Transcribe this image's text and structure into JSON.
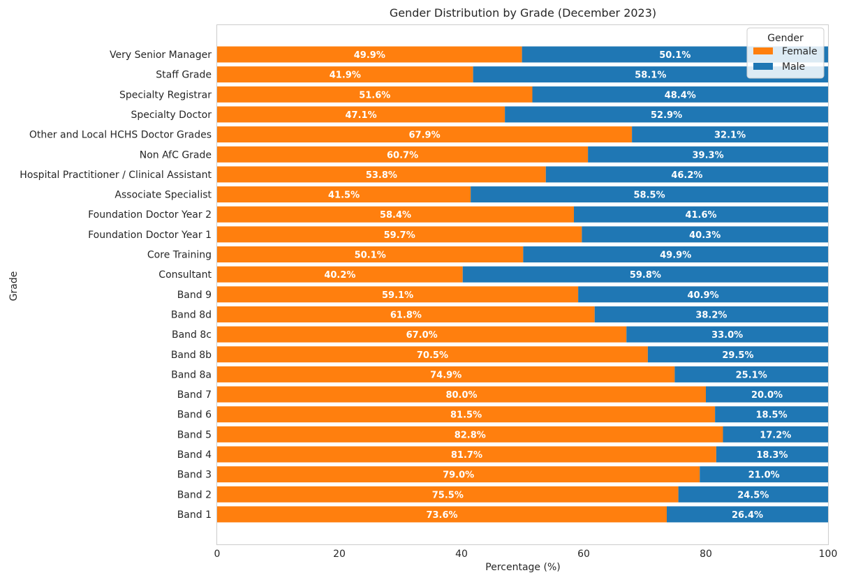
{
  "chart_data": {
    "type": "bar",
    "orientation": "horizontal",
    "stacked": true,
    "title": "Gender Distribution by Grade (December 2023)",
    "xlabel": "Percentage (%)",
    "ylabel": "Grade",
    "xlim": [
      0,
      100
    ],
    "xticks": [
      "0",
      "20",
      "40",
      "60",
      "80",
      "100"
    ],
    "grid": false,
    "legend": {
      "title": "Gender",
      "placement": "top-right",
      "entries": [
        "Female",
        "Male"
      ]
    },
    "categories": [
      "Very Senior Manager",
      "Staff Grade",
      "Specialty Registrar",
      "Specialty Doctor",
      "Other and Local HCHS Doctor Grades",
      "Non AfC Grade",
      "Hospital Practitioner / Clinical Assistant",
      "Associate Specialist",
      "Foundation Doctor Year 2",
      "Foundation Doctor Year 1",
      "Core Training",
      "Consultant",
      "Band 9",
      "Band 8d",
      "Band 8c",
      "Band 8b",
      "Band 8a",
      "Band 7",
      "Band 6",
      "Band 5",
      "Band 4",
      "Band 3",
      "Band 2",
      "Band 1"
    ],
    "series": [
      {
        "name": "Female",
        "color": "#ff7f0e",
        "values": [
          49.9,
          41.9,
          51.6,
          47.1,
          67.9,
          60.7,
          53.8,
          41.5,
          58.4,
          59.7,
          50.1,
          40.2,
          59.1,
          61.8,
          67.0,
          70.5,
          74.9,
          80.0,
          81.5,
          82.8,
          81.7,
          79.0,
          75.5,
          73.6
        ],
        "labels": [
          "49.9%",
          "41.9%",
          "51.6%",
          "47.1%",
          "67.9%",
          "60.7%",
          "53.8%",
          "41.5%",
          "58.4%",
          "59.7%",
          "50.1%",
          "40.2%",
          "59.1%",
          "61.8%",
          "67.0%",
          "70.5%",
          "74.9%",
          "80.0%",
          "81.5%",
          "82.8%",
          "81.7%",
          "79.0%",
          "75.5%",
          "73.6%"
        ]
      },
      {
        "name": "Male",
        "color": "#1f77b4",
        "values": [
          50.1,
          58.1,
          48.4,
          52.9,
          32.1,
          39.3,
          46.2,
          58.5,
          41.6,
          40.3,
          49.9,
          59.8,
          40.9,
          38.2,
          33.0,
          29.5,
          25.1,
          20.0,
          18.5,
          17.2,
          18.3,
          21.0,
          24.5,
          26.4
        ],
        "labels": [
          "50.1%",
          "58.1%",
          "48.4%",
          "52.9%",
          "32.1%",
          "39.3%",
          "46.2%",
          "58.5%",
          "41.6%",
          "40.3%",
          "49.9%",
          "59.8%",
          "40.9%",
          "38.2%",
          "33.0%",
          "29.5%",
          "25.1%",
          "20.0%",
          "18.5%",
          "17.2%",
          "18.3%",
          "21.0%",
          "24.5%",
          "26.4%"
        ]
      }
    ]
  }
}
